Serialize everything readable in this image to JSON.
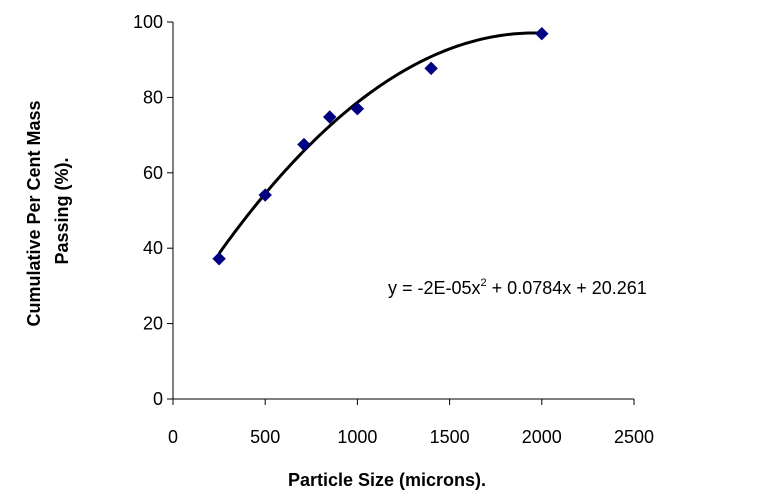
{
  "chart_data": {
    "type": "scatter",
    "xlabel": "Particle Size (microns).",
    "ylabel_lines": [
      "Cumulative Per Cent Mass",
      "Passing (%)."
    ],
    "xlim": [
      0,
      2500
    ],
    "ylim": [
      0,
      100
    ],
    "x_ticks": [
      0,
      500,
      1000,
      1500,
      2000,
      2500
    ],
    "y_ticks": [
      0,
      20,
      40,
      60,
      80,
      100
    ],
    "grid": false,
    "legend": "none",
    "series": [
      {
        "marker": "diamond",
        "color": "#000080",
        "x": [
          250,
          500,
          710,
          850,
          1000,
          1400,
          2000
        ],
        "y": [
          37.2,
          54.1,
          67.5,
          74.8,
          77.0,
          87.7,
          96.9
        ]
      }
    ],
    "trendline": {
      "type": "polynomial",
      "order": 2,
      "coefficients": [
        -2e-05,
        0.0784,
        20.261
      ],
      "x_range": [
        250,
        2000
      ],
      "color": "#000000"
    },
    "annotation": {
      "equation_prefix": "y = -2E-05x",
      "equation_exponent": "2",
      "equation_suffix": " + 0.0784x + 20.261"
    }
  }
}
